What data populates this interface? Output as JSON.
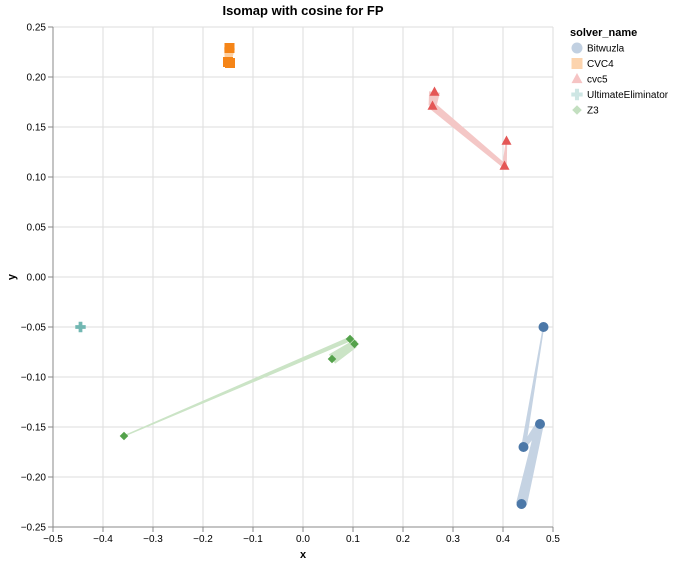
{
  "chart_data": {
    "type": "scatter",
    "title": "Isomap with cosine for FP",
    "xlabel": "x",
    "ylabel": "y",
    "xlim": [
      -0.5,
      0.5
    ],
    "ylim": [
      -0.25,
      0.25
    ],
    "x_ticks": [
      "−0.5",
      "−0.4",
      "−0.3",
      "−0.2",
      "−0.1",
      "0.0",
      "0.1",
      "0.2",
      "0.3",
      "0.4",
      "0.5"
    ],
    "x_tick_values": [
      -0.5,
      -0.4,
      -0.3,
      -0.2,
      -0.1,
      0.0,
      0.1,
      0.2,
      0.3,
      0.4,
      0.5
    ],
    "y_ticks": [
      "0.25",
      "0.20",
      "0.15",
      "0.10",
      "0.05",
      "0.00",
      "−0.05",
      "−0.10",
      "−0.15",
      "−0.20",
      "−0.25"
    ],
    "y_tick_values": [
      0.25,
      0.2,
      0.15,
      0.1,
      0.05,
      0.0,
      -0.05,
      -0.1,
      -0.15,
      -0.2,
      -0.25
    ],
    "grid": true,
    "legend": {
      "title": "solver_name",
      "placement": "right"
    },
    "series": [
      {
        "name": "Bitwuzla",
        "shape": "circle",
        "color": "#4c78a8",
        "trail_color": "#c5d3e3",
        "points": [
          {
            "x": 0.481,
            "y": -0.05
          },
          {
            "x": 0.474,
            "y": -0.147
          },
          {
            "x": 0.441,
            "y": -0.17
          },
          {
            "x": 0.437,
            "y": -0.227
          }
        ],
        "trail": [
          {
            "x": 0.437,
            "y": -0.227
          },
          {
            "x": 0.474,
            "y": -0.147
          },
          {
            "x": 0.441,
            "y": -0.17
          },
          {
            "x": 0.481,
            "y": -0.05
          }
        ]
      },
      {
        "name": "CVC4",
        "shape": "square",
        "color": "#f58518",
        "trail_color": "#fdd0a2",
        "points": [
          {
            "x": -0.147,
            "y": 0.229
          },
          {
            "x": -0.15,
            "y": 0.215
          },
          {
            "x": -0.146,
            "y": 0.214
          }
        ],
        "trail": [
          {
            "x": -0.147,
            "y": 0.229
          },
          {
            "x": -0.15,
            "y": 0.215
          },
          {
            "x": -0.146,
            "y": 0.214
          }
        ]
      },
      {
        "name": "cvc5",
        "shape": "triangle",
        "color": "#e45756",
        "trail_color": "#f4c7c6",
        "points": [
          {
            "x": 0.263,
            "y": 0.185
          },
          {
            "x": 0.259,
            "y": 0.171
          },
          {
            "x": 0.407,
            "y": 0.136
          },
          {
            "x": 0.403,
            "y": 0.111
          }
        ],
        "trail": [
          {
            "x": 0.263,
            "y": 0.185
          },
          {
            "x": 0.259,
            "y": 0.171
          },
          {
            "x": 0.403,
            "y": 0.111
          },
          {
            "x": 0.407,
            "y": 0.136
          }
        ]
      },
      {
        "name": "UltimateEliminator",
        "shape": "cross",
        "color": "#72b7b2",
        "trail_color": "#c9e4e2",
        "points": [
          {
            "x": -0.445,
            "y": -0.05
          }
        ],
        "trail": [
          {
            "x": -0.445,
            "y": -0.05
          }
        ]
      },
      {
        "name": "Z3",
        "shape": "diamond",
        "color": "#54a24b",
        "trail_color": "#cbe4c6",
        "points": [
          {
            "x": 0.094,
            "y": -0.062
          },
          {
            "x": 0.103,
            "y": -0.067
          },
          {
            "x": 0.058,
            "y": -0.082
          },
          {
            "x": -0.358,
            "y": -0.159
          }
        ],
        "trail": [
          {
            "x": 0.058,
            "y": -0.082
          },
          {
            "x": 0.103,
            "y": -0.067
          },
          {
            "x": 0.094,
            "y": -0.062
          },
          {
            "x": -0.358,
            "y": -0.159
          }
        ]
      }
    ]
  }
}
